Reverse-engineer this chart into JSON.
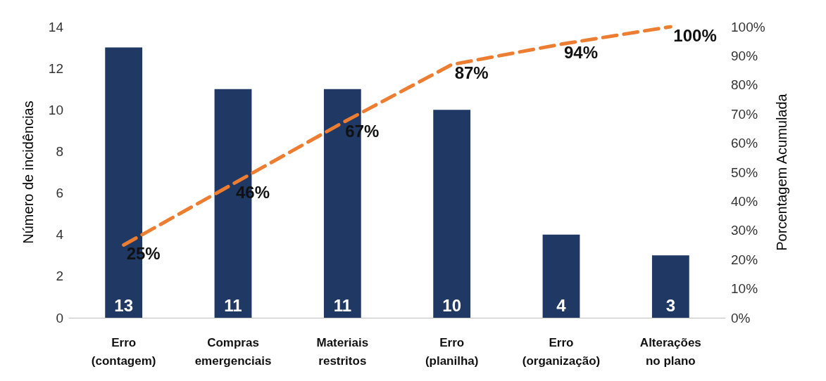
{
  "chart_data": {
    "type": "bar",
    "ylabel": "Número de incidências",
    "y2label": "Porcentagem Acumulada",
    "categories": [
      "Erro\n(contagem)",
      "Compras\nemergenciais",
      "Materiais\nrestritos",
      "Erro\n(planilha)",
      "Erro\n(organização)",
      "Alterações\nno plano"
    ],
    "series": [
      {
        "color": "#1f3864",
        "values": [
          13,
          11,
          11,
          10,
          4,
          3
        ],
        "value_labels": [
          "13",
          "11",
          "11",
          "10",
          "4",
          "3"
        ]
      },
      {
        "type": "line",
        "axis": "y2",
        "color": "#ed7d31",
        "values": [
          25,
          46,
          67,
          87,
          94,
          100
        ],
        "value_labels": [
          "25%",
          "46%",
          "67%",
          "87%",
          "94%",
          "100%"
        ]
      }
    ],
    "ylim": [
      0,
      14
    ],
    "yticks": [
      0,
      2,
      4,
      6,
      8,
      10,
      12,
      14
    ],
    "y2lim": [
      0,
      100
    ],
    "y2ticks": [
      {
        "value": 0,
        "label": "0%"
      },
      {
        "value": 10,
        "label": "10%"
      },
      {
        "value": 20,
        "label": "20%"
      },
      {
        "value": 30,
        "label": "30%"
      },
      {
        "value": 40,
        "label": "40%"
      },
      {
        "value": 50,
        "label": "50%"
      },
      {
        "value": 60,
        "label": "60%"
      },
      {
        "value": 70,
        "label": "70%"
      },
      {
        "value": 80,
        "label": "80%"
      },
      {
        "value": 90,
        "label": "90%"
      },
      {
        "value": 100,
        "label": "100%"
      }
    ],
    "grid": false,
    "marker": "none",
    "line_style": "dashed"
  }
}
